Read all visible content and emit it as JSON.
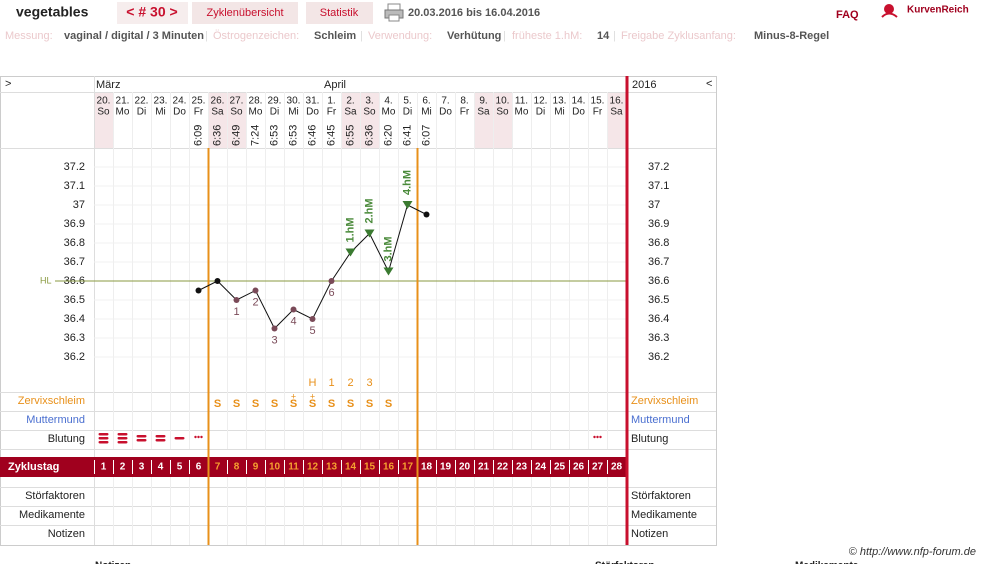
{
  "header": {
    "profile": "vegetables",
    "cycle": "< # 30 >",
    "tabs": [
      "Zyklenübersicht",
      "Statistik"
    ],
    "range": "20.03.2016 bis 16.04.2016",
    "faq": "FAQ",
    "brand": "KurvenReich"
  },
  "meta": {
    "separator": "|",
    "items": [
      {
        "label": "Messung:",
        "value": "vaginal / digital / 3 Minuten"
      },
      {
        "label": "Östrogenzeichen:",
        "value": "Schleim"
      },
      {
        "label": "Verwendung:",
        "value": "Verhütung"
      },
      {
        "label": "früheste 1.hM:",
        "value": "14"
      },
      {
        "label": "Freigabe Zyklusanfang:",
        "value": "Minus-8-Regel"
      }
    ]
  },
  "chart": {
    "type": "line",
    "nav_left": ">",
    "nav_right": "<",
    "months": [
      {
        "name": "März",
        "day": 0
      },
      {
        "name": "April",
        "day": 12
      }
    ],
    "year": "2016",
    "days": [
      {
        "date": "20.",
        "weekday": "So",
        "time": null
      },
      {
        "date": "21.",
        "weekday": "Mo",
        "time": null
      },
      {
        "date": "22.",
        "weekday": "Di",
        "time": null
      },
      {
        "date": "23.",
        "weekday": "Mi",
        "time": null
      },
      {
        "date": "24.",
        "weekday": "Do",
        "time": null
      },
      {
        "date": "25.",
        "weekday": "Fr",
        "time": "6:09"
      },
      {
        "date": "26.",
        "weekday": "Sa",
        "time": "6:36"
      },
      {
        "date": "27.",
        "weekday": "So",
        "time": "6:49"
      },
      {
        "date": "28.",
        "weekday": "Mo",
        "time": "7:24"
      },
      {
        "date": "29.",
        "weekday": "Di",
        "time": "6:53"
      },
      {
        "date": "30.",
        "weekday": "Mi",
        "time": "6:53"
      },
      {
        "date": "31.",
        "weekday": "Do",
        "time": "6:46"
      },
      {
        "date": "1.",
        "weekday": "Fr",
        "time": "6:45"
      },
      {
        "date": "2.",
        "weekday": "Sa",
        "time": "6:55"
      },
      {
        "date": "3.",
        "weekday": "So",
        "time": "6:36"
      },
      {
        "date": "4.",
        "weekday": "Mo",
        "time": "6:20"
      },
      {
        "date": "5.",
        "weekday": "Di",
        "time": "6:41"
      },
      {
        "date": "6.",
        "weekday": "Mi",
        "time": "6:07"
      },
      {
        "date": "7.",
        "weekday": "Do",
        "time": null
      },
      {
        "date": "8.",
        "weekday": "Fr",
        "time": null
      },
      {
        "date": "9.",
        "weekday": "Sa",
        "time": null
      },
      {
        "date": "10.",
        "weekday": "So",
        "time": null
      },
      {
        "date": "11.",
        "weekday": "Mo",
        "time": null
      },
      {
        "date": "12.",
        "weekday": "Di",
        "time": null
      },
      {
        "date": "13.",
        "weekday": "Mi",
        "time": null
      },
      {
        "date": "14.",
        "weekday": "Do",
        "time": null
      },
      {
        "date": "15.",
        "weekday": "Fr",
        "time": null
      },
      {
        "date": "16.",
        "weekday": "Sa",
        "time": null
      }
    ],
    "temperatures": [
      null,
      null,
      null,
      null,
      null,
      36.55,
      36.6,
      36.5,
      36.55,
      36.35,
      36.45,
      36.4,
      36.6,
      36.75,
      36.85,
      36.65,
      37.0,
      36.95,
      null,
      null,
      null,
      null,
      null,
      null,
      null,
      null,
      null,
      null
    ],
    "point_labels": [
      null,
      null,
      null,
      null,
      null,
      null,
      null,
      "1",
      "2",
      "3",
      "4",
      "5",
      "6",
      "1.hM",
      "2.hM",
      "3.hM",
      "4.hM",
      null,
      null,
      null,
      null,
      null,
      null,
      null,
      null,
      null,
      null,
      null
    ],
    "ylim": [
      36.1,
      37.3
    ],
    "yticks": [
      37.2,
      37.1,
      37,
      36.9,
      36.8,
      36.7,
      36.6,
      36.5,
      36.4,
      36.3,
      36.2
    ],
    "hl": {
      "label": "HL",
      "value": 36.6
    },
    "cover_lines": [
      6,
      17
    ],
    "cervix_top": [
      null,
      null,
      null,
      null,
      null,
      null,
      null,
      null,
      null,
      null,
      null,
      "H",
      "1",
      "2",
      "3",
      null,
      null,
      null,
      null,
      null,
      null,
      null,
      null,
      null,
      null,
      null,
      null,
      null
    ],
    "cervix_sup": [
      null,
      null,
      null,
      null,
      null,
      null,
      null,
      null,
      null,
      null,
      "+",
      "+",
      null,
      null,
      null,
      null,
      null,
      null,
      null,
      null,
      null,
      null,
      null,
      null,
      null,
      null,
      null,
      null
    ],
    "cervix": [
      null,
      null,
      null,
      null,
      null,
      null,
      "S",
      "S",
      "S",
      "S",
      "S",
      "S",
      "S",
      "S",
      "S",
      "S",
      null,
      null,
      null,
      null,
      null,
      null,
      null,
      null,
      null,
      null,
      null,
      null
    ],
    "rows": {
      "zervix": "Zervixschleim",
      "muttermund": "Muttermund",
      "blutung": "Blutung",
      "zyklustag": "Zyklustag",
      "stoer": "Störfaktoren",
      "medi": "Medikamente",
      "notizen": "Notizen"
    },
    "cycle_days": [
      1,
      2,
      3,
      4,
      5,
      6,
      7,
      8,
      9,
      10,
      11,
      12,
      13,
      14,
      15,
      16,
      17,
      18,
      19,
      20,
      21,
      22,
      23,
      24,
      25,
      26,
      27,
      28
    ]
  },
  "footer": {
    "copyright": "© http://www.nfp-forum.de",
    "below": [
      "Notizen",
      "Störfaktoren",
      "Medikamente"
    ]
  }
}
